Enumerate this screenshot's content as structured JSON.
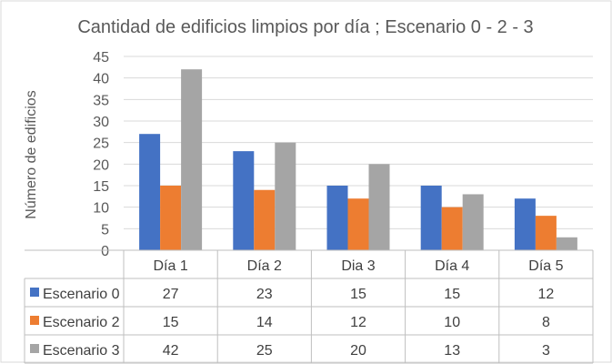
{
  "chart_data": {
    "type": "bar",
    "title": "Cantidad de edificios limpios por día ; Escenario 0 - 2 - 3",
    "xlabel": "",
    "ylabel": "Número de edificios",
    "categories": [
      "Día 1",
      "Día 2",
      "Dia 3",
      "Día 4",
      "Día 5"
    ],
    "ylim": [
      0,
      45
    ],
    "yticks": [
      0,
      5,
      10,
      15,
      20,
      25,
      30,
      35,
      40,
      45
    ],
    "grid": true,
    "legend": "data-table-left",
    "series": [
      {
        "name": "Escenario 0",
        "color": "#4472c4",
        "values": [
          27,
          23,
          15,
          15,
          12
        ]
      },
      {
        "name": "Escenario 2",
        "color": "#ed7d31",
        "values": [
          15,
          14,
          12,
          10,
          8
        ]
      },
      {
        "name": "Escenario 3",
        "color": "#a5a5a5",
        "values": [
          42,
          25,
          20,
          13,
          3
        ]
      }
    ]
  }
}
